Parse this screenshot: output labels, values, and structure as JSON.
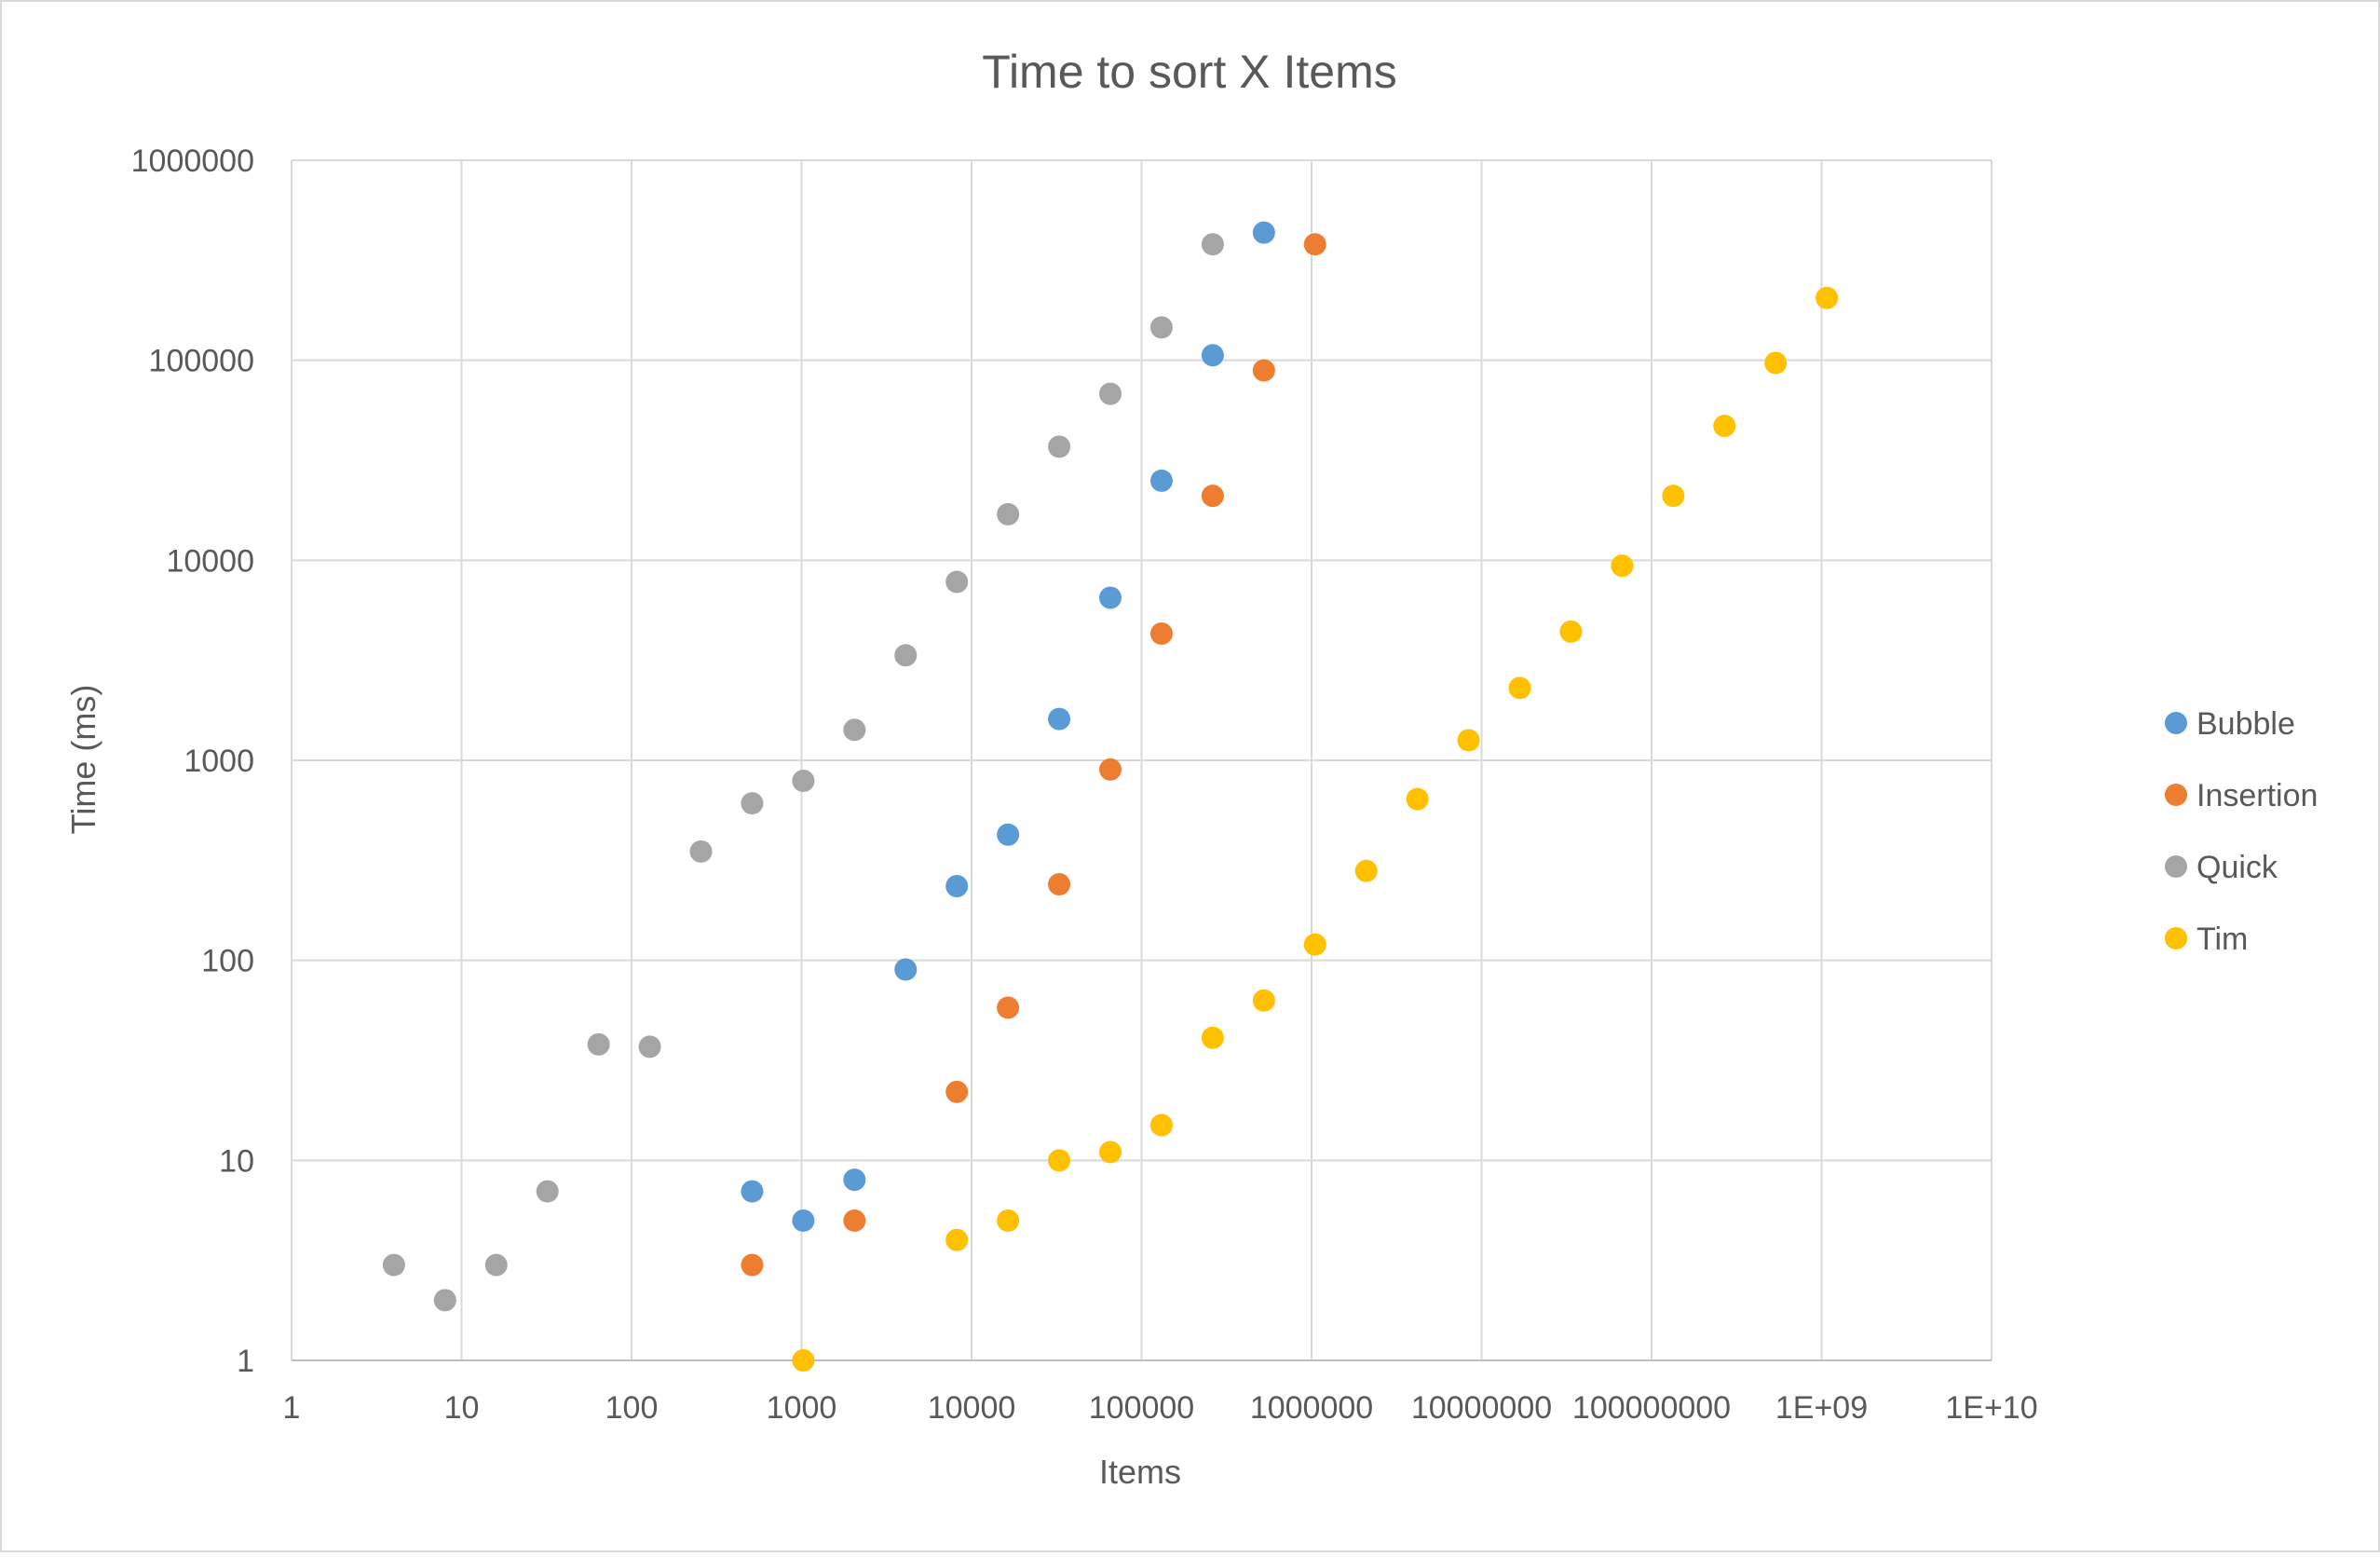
{
  "chart_data": {
    "type": "scatter",
    "title": "Time to sort X Items",
    "xlabel": "Items",
    "ylabel": "Time (ms)",
    "x_scale": "log",
    "y_scale": "log",
    "xlim": [
      1,
      10000000000
    ],
    "ylim": [
      1,
      1000000
    ],
    "grid": true,
    "legend_position": "right",
    "x_ticks": [
      {
        "value": 1,
        "label": "1"
      },
      {
        "value": 10,
        "label": "10"
      },
      {
        "value": 100,
        "label": "100"
      },
      {
        "value": 1000,
        "label": "1000"
      },
      {
        "value": 10000,
        "label": "10000"
      },
      {
        "value": 100000,
        "label": "100000"
      },
      {
        "value": 1000000,
        "label": "1000000"
      },
      {
        "value": 10000000,
        "label": "10000000"
      },
      {
        "value": 100000000,
        "label": "100000000"
      },
      {
        "value": 1000000000,
        "label": "1E+09"
      },
      {
        "value": 10000000000,
        "label": "1E+10"
      }
    ],
    "y_ticks": [
      {
        "value": 1,
        "label": "1"
      },
      {
        "value": 10,
        "label": "10"
      },
      {
        "value": 100,
        "label": "100"
      },
      {
        "value": 1000,
        "label": "1000"
      },
      {
        "value": 10000,
        "label": "10000"
      },
      {
        "value": 100000,
        "label": "100000"
      },
      {
        "value": 1000000,
        "label": "1000000"
      }
    ],
    "series": [
      {
        "name": "Bubble",
        "color": "#5b9bd5",
        "points": [
          [
            512,
            7
          ],
          [
            1024,
            5
          ],
          [
            2048,
            8
          ],
          [
            4096,
            90
          ],
          [
            8192,
            235
          ],
          [
            16384,
            425
          ],
          [
            32768,
            1610
          ],
          [
            65536,
            6500
          ],
          [
            131072,
            25000
          ],
          [
            262144,
            106000
          ],
          [
            524288,
            435000
          ]
        ]
      },
      {
        "name": "Insertion",
        "color": "#ed7d31",
        "points": [
          [
            512,
            3
          ],
          [
            2048,
            5
          ],
          [
            8192,
            22
          ],
          [
            16384,
            58
          ],
          [
            32768,
            240
          ],
          [
            65536,
            900
          ],
          [
            131072,
            4300
          ],
          [
            262144,
            21000
          ],
          [
            524288,
            89000
          ],
          [
            1048576,
            380000
          ]
        ]
      },
      {
        "name": "Quick",
        "color": "#a5a5a5",
        "points": [
          [
            4,
            3
          ],
          [
            8,
            2
          ],
          [
            16,
            3
          ],
          [
            32,
            7
          ],
          [
            64,
            38
          ],
          [
            128,
            37
          ],
          [
            256,
            350
          ],
          [
            512,
            610
          ],
          [
            1024,
            790
          ],
          [
            2048,
            1420
          ],
          [
            4096,
            3350
          ],
          [
            8192,
            7800
          ],
          [
            16384,
            17000
          ],
          [
            32768,
            37000
          ],
          [
            65536,
            68000
          ],
          [
            131072,
            146000
          ],
          [
            262144,
            380000
          ]
        ]
      },
      {
        "name": "Tim",
        "color": "#ffc000",
        "points": [
          [
            1024,
            1
          ],
          [
            8192,
            4
          ],
          [
            16384,
            5
          ],
          [
            32768,
            10
          ],
          [
            65536,
            11
          ],
          [
            131072,
            15
          ],
          [
            262144,
            41
          ],
          [
            524288,
            63
          ],
          [
            1048576,
            120
          ],
          [
            2097152,
            280
          ],
          [
            4194304,
            640
          ],
          [
            8388608,
            1260
          ],
          [
            16777216,
            2300
          ],
          [
            33554432,
            4400
          ],
          [
            67108864,
            9400
          ],
          [
            134217728,
            21000
          ],
          [
            268435456,
            47000
          ],
          [
            536870912,
            97000
          ],
          [
            1073741824,
            205000
          ]
        ]
      }
    ]
  }
}
